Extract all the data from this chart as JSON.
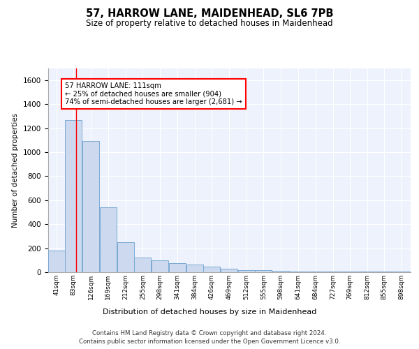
{
  "title": "57, HARROW LANE, MAIDENHEAD, SL6 7PB",
  "subtitle": "Size of property relative to detached houses in Maidenhead",
  "xlabel": "Distribution of detached houses by size in Maidenhead",
  "ylabel": "Number of detached properties",
  "bin_labels": [
    "41sqm",
    "83sqm",
    "126sqm",
    "169sqm",
    "212sqm",
    "255sqm",
    "298sqm",
    "341sqm",
    "384sqm",
    "426sqm",
    "469sqm",
    "512sqm",
    "555sqm",
    "598sqm",
    "641sqm",
    "684sqm",
    "727sqm",
    "769sqm",
    "812sqm",
    "855sqm",
    "898sqm"
  ],
  "bar_values": [
    180,
    1265,
    1090,
    540,
    250,
    120,
    100,
    75,
    65,
    45,
    30,
    20,
    20,
    10,
    5,
    5,
    5,
    5,
    5,
    5,
    5
  ],
  "bar_color": "#cdd9ee",
  "bar_edge_color": "#7aaad4",
  "property_line_x": 111,
  "annotation_text1": "57 HARROW LANE: 111sqm",
  "annotation_text2": "← 25% of detached houses are smaller (904)",
  "annotation_text3": "74% of semi-detached houses are larger (2,681) →",
  "annotation_box_color": "white",
  "annotation_box_edge_color": "red",
  "property_line_color": "red",
  "ylim": [
    0,
    1700
  ],
  "yticks": [
    0,
    200,
    400,
    600,
    800,
    1000,
    1200,
    1400,
    1600
  ],
  "footer1": "Contains HM Land Registry data © Crown copyright and database right 2024.",
  "footer2": "Contains public sector information licensed under the Open Government Licence v3.0.",
  "bg_color": "#edf2fc",
  "grid_color": "white",
  "fig_bg": "#ffffff",
  "bin_starts": [
    41,
    83,
    126,
    169,
    212,
    255,
    298,
    341,
    384,
    426,
    469,
    512,
    555,
    598,
    641,
    684,
    727,
    769,
    812,
    855,
    898
  ],
  "bin_width": 42
}
